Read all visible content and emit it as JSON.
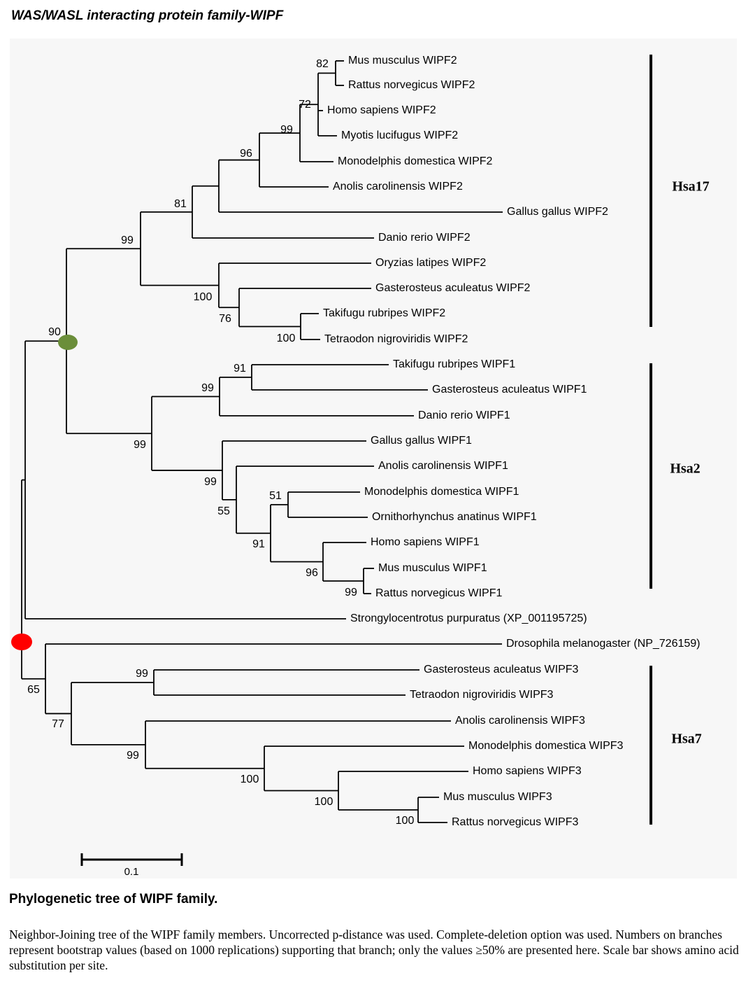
{
  "header": {
    "title": "WAS/WASL interacting protein family-WIPF"
  },
  "tree": {
    "taxa": [
      "Mus musculus WIPF2",
      "Rattus norvegicus WIPF2",
      "Homo sapiens WIPF2",
      "Myotis lucifugus WIPF2",
      "Monodelphis domestica WIPF2",
      "Anolis carolinensis WIPF2",
      "Gallus gallus WIPF2",
      "Danio rerio WIPF2",
      "Oryzias latipes WIPF2",
      "Gasterosteus aculeatus WIPF2",
      "Takifugu rubripes WIPF2",
      "Tetraodon nigroviridis WIPF2",
      "Takifugu rubripes WIPF1",
      "Gasterosteus aculeatus WIPF1",
      "Danio rerio WIPF1",
      "Gallus gallus WIPF1",
      "Anolis carolinensis WIPF1",
      "Monodelphis domestica WIPF1",
      "Ornithorhynchus anatinus WIPF1",
      "Homo sapiens WIPF1",
      "Mus musculus WIPF1",
      "Rattus norvegicus WIPF1",
      "Strongylocentrotus purpuratus (XP_001195725)",
      "Drosophila melanogaster (NP_726159)",
      "Gasterosteus aculeatus WIPF3",
      "Tetraodon nigroviridis WIPF3",
      "Anolis carolinensis WIPF3",
      "Monodelphis domestica WIPF3",
      "Homo sapiens WIPF3",
      "Mus musculus WIPF3",
      "Rattus norvegicus WIPF3"
    ],
    "bootstrap": [
      "82",
      "72",
      "99",
      "96",
      "81",
      "99",
      "100",
      "76",
      "100",
      "90",
      "91",
      "99",
      "99",
      "99",
      "51",
      "55",
      "91",
      "96",
      "99",
      "65",
      "77",
      "99",
      "99",
      "100",
      "100",
      "100"
    ],
    "groups": [
      "Hsa17",
      "Hsa2",
      "Hsa7"
    ],
    "scale_label": "0.1",
    "colors": {
      "line": "#000000",
      "node_green": "#6b8e3a",
      "node_red": "#ff0000",
      "panel": "#f7f7f7"
    }
  },
  "caption": {
    "title": "Phylogenetic tree of WIPF family.",
    "text": "Neighbor-Joining tree of the WIPF family members. Uncorrected p-distance was used. Complete-deletion option was used. Numbers on branches represent bootstrap values (based on 1000 replications) supporting that branch; only the values ≥50% are presented here. Scale bar shows amino acid substitution per site."
  }
}
